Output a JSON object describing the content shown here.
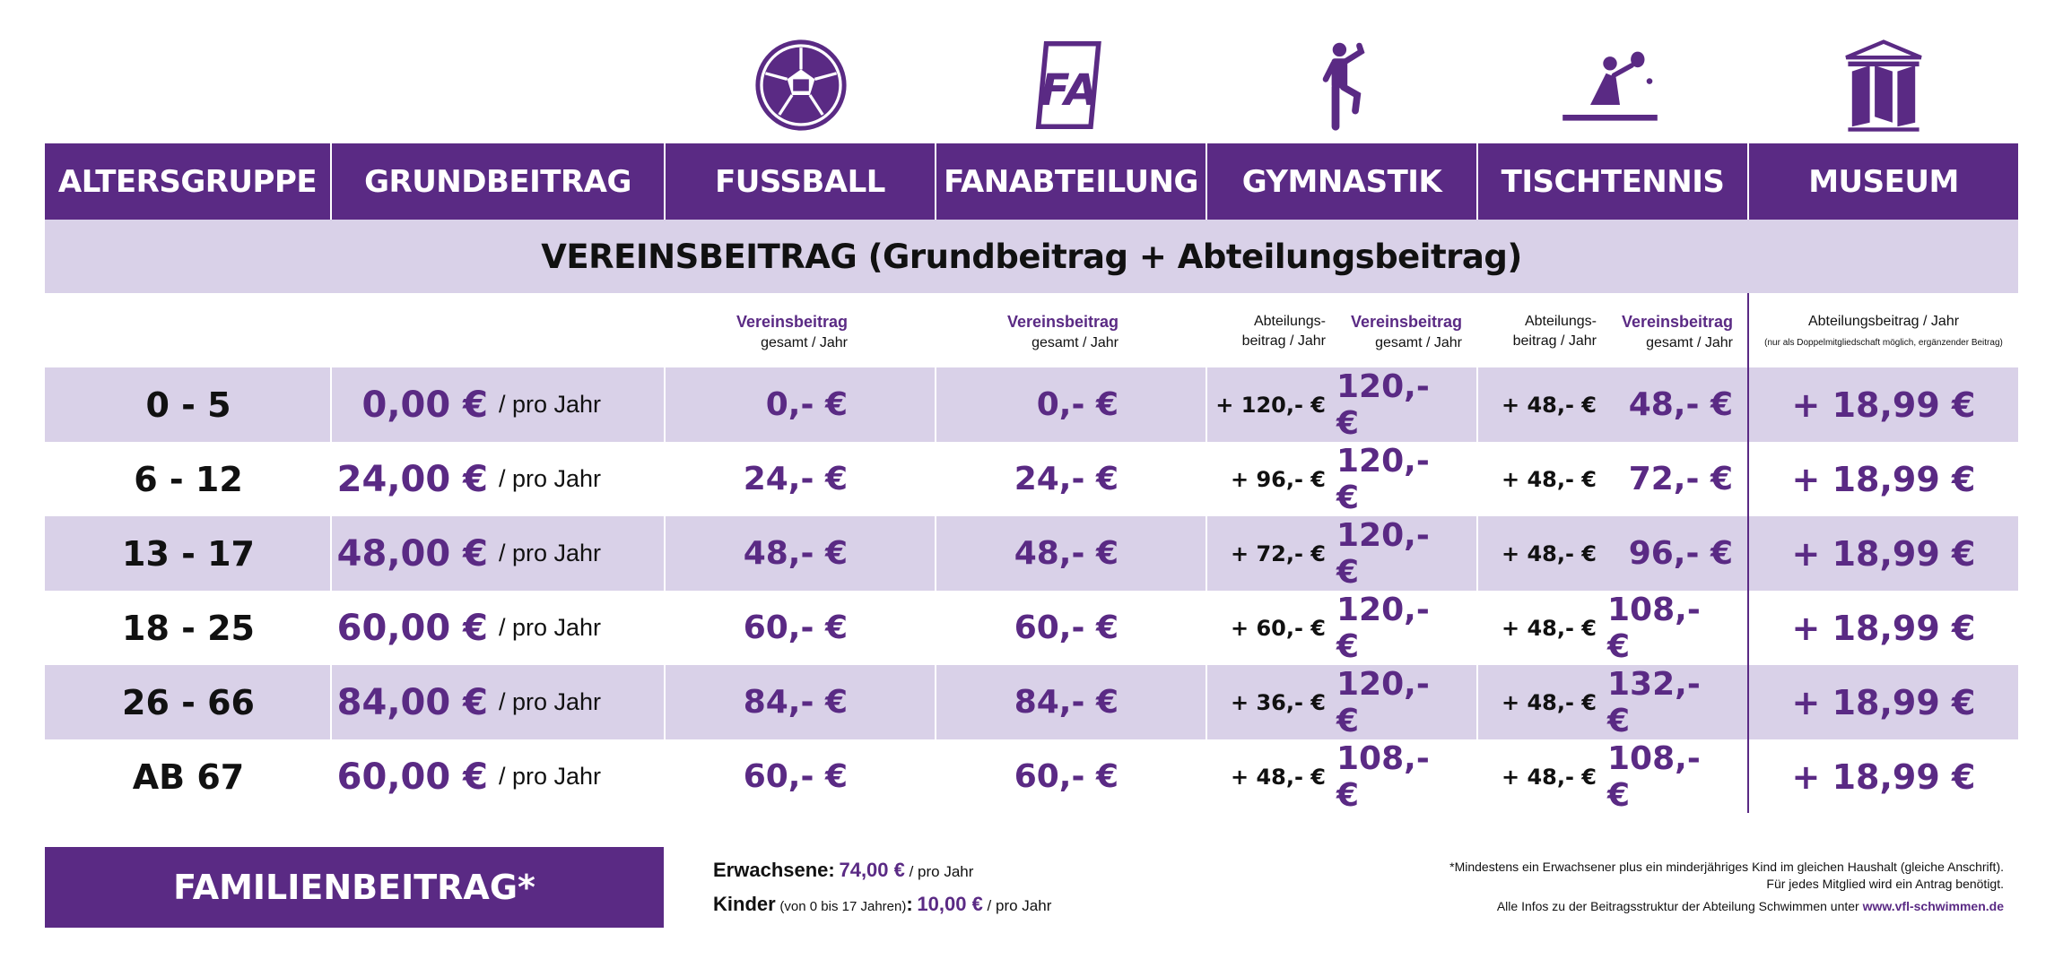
{
  "icons": [
    "football-icon",
    "fa-logo-icon",
    "gymnast-icon",
    "table-tennis-icon",
    "museum-icon"
  ],
  "headers": [
    "ALTERSGRUPPE",
    "GRUNDBEITRAG",
    "FUSSBALL",
    "FANABTEILUNG",
    "GYMNASTIK",
    "TISCHTENNIS",
    "MUSEUM"
  ],
  "band_title": "VEREINSBEITRAG (Grundbeitrag + Abteilungsbeitrag)",
  "sub_labels": {
    "vereinsbeitrag": "Vereinsbeitrag",
    "gesamt_jahr": "gesamt / Jahr",
    "abteilungs": "Abteilungs-",
    "beitrag_jahr": "beitrag / Jahr",
    "museum_main": "Abteilungsbeitrag / Jahr",
    "museum_note": "(nur als Doppelmitgliedschaft möglich, ergänzender Beitrag)"
  },
  "per_year": "/ pro Jahr",
  "rows": [
    {
      "age": "0 - 5",
      "grund": "0,00 €",
      "fussball": "0,- €",
      "fan": "0,- €",
      "gym_add": "+ 120,- €",
      "gym_total": "120,- €",
      "tt_add": "+ 48,- €",
      "tt_total": "48,- €",
      "museum": "+ 18,99 €"
    },
    {
      "age": "6 - 12",
      "grund": "24,00 €",
      "fussball": "24,- €",
      "fan": "24,- €",
      "gym_add": "+ 96,- €",
      "gym_total": "120,- €",
      "tt_add": "+ 48,- €",
      "tt_total": "72,- €",
      "museum": "+ 18,99 €"
    },
    {
      "age": "13 - 17",
      "grund": "48,00 €",
      "fussball": "48,- €",
      "fan": "48,- €",
      "gym_add": "+ 72,- €",
      "gym_total": "120,- €",
      "tt_add": "+ 48,- €",
      "tt_total": "96,- €",
      "museum": "+ 18,99 €"
    },
    {
      "age": "18 - 25",
      "grund": "60,00 €",
      "fussball": "60,- €",
      "fan": "60,- €",
      "gym_add": "+ 60,- €",
      "gym_total": "120,- €",
      "tt_add": "+ 48,- €",
      "tt_total": "108,- €",
      "museum": "+ 18,99 €"
    },
    {
      "age": "26 - 66",
      "grund": "84,00 €",
      "fussball": "84,- €",
      "fan": "84,- €",
      "gym_add": "+ 36,- €",
      "gym_total": "120,- €",
      "tt_add": "+ 48,- €",
      "tt_total": "132,- €",
      "museum": "+ 18,99 €"
    },
    {
      "age": "AB 67",
      "grund": "60,00 €",
      "fussball": "60,- €",
      "fan": "60,- €",
      "gym_add": "+ 48,- €",
      "gym_total": "108,- €",
      "tt_add": "+ 48,- €",
      "tt_total": "108,- €",
      "museum": "+ 18,99 €"
    }
  ],
  "family": {
    "title": "FAMILIENBEITRAG*",
    "adults_label": "Erwachsene:",
    "adults_value": "74,00 €",
    "adults_per": "/ pro Jahr",
    "kids_label": "Kinder",
    "kids_range": "(von 0 bis 17 Jahren)",
    "kids_colon": ":",
    "kids_value": "10,00 €",
    "kids_per": "/ pro Jahr"
  },
  "notes": {
    "line1": "*Mindestens ein Erwachsener plus ein minderjähriges Kind im gleichen Haushalt (gleiche Anschrift).",
    "line2": "Für jedes Mitglied wird ein Antrag benötigt.",
    "line3": "Alle Infos zu der Beitragsstruktur der Abteilung Schwimmen unter",
    "website": "www.vfl-schwimmen.de"
  },
  "colors": {
    "primary": "#5a2a84",
    "band": "#d9d1e8",
    "text": "#111111"
  }
}
